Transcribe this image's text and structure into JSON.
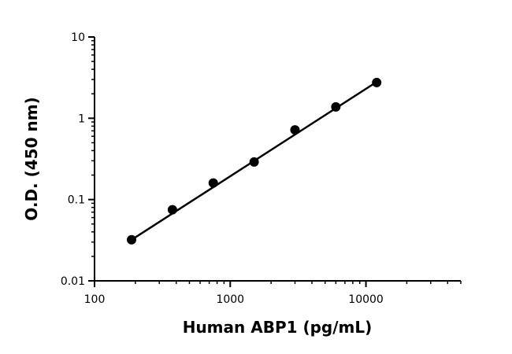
{
  "chart_data": {
    "type": "scatter",
    "xlabel": "Human ABP1 (pg/mL)",
    "ylabel": "O.D. (450 nm)",
    "x_scale": "log",
    "y_scale": "log",
    "xlim": [
      100,
      50000
    ],
    "ylim": [
      0.01,
      10
    ],
    "x_ticks": [
      100,
      1000,
      10000
    ],
    "x_tick_labels": [
      "100",
      "1000",
      "10000"
    ],
    "y_ticks": [
      0.01,
      0.1,
      1,
      10
    ],
    "y_tick_labels": [
      "0.01",
      "0.1",
      "1",
      "10"
    ],
    "grid": false,
    "series": [
      {
        "x": [
          187.5,
          375,
          750,
          1500,
          3000,
          6000,
          12000
        ],
        "y": [
          0.032,
          0.075,
          0.16,
          0.29,
          0.72,
          1.38,
          2.75
        ],
        "color": "#000000"
      }
    ],
    "fit_line": {
      "x": [
        187.5,
        12000
      ],
      "y": [
        0.032,
        2.8
      ]
    }
  }
}
